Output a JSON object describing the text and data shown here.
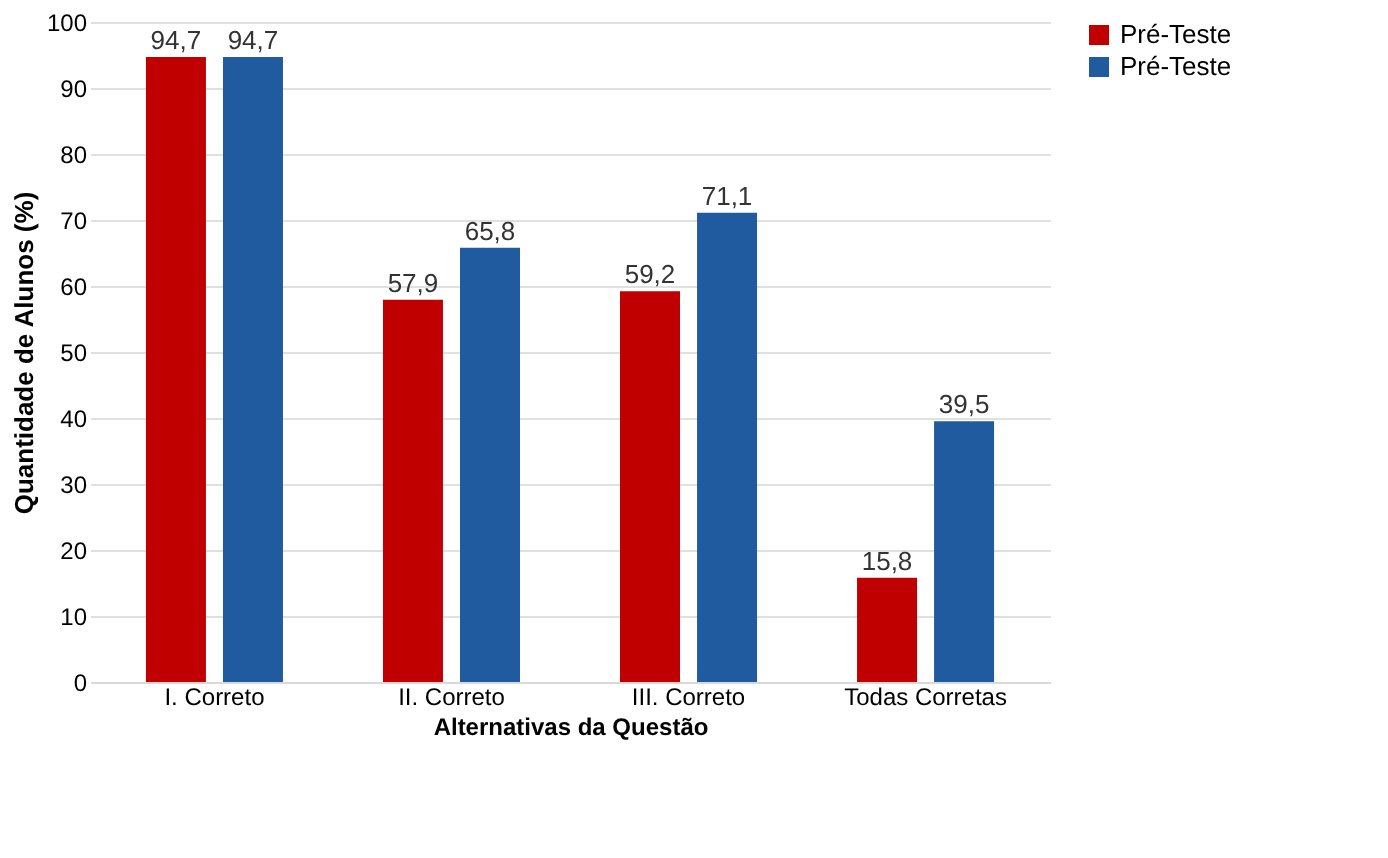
{
  "chart_data": {
    "type": "bar",
    "xlabel": "Alternativas da Questão",
    "ylabel": "Quantidade de Alunos (%)",
    "categories": [
      "I. Correto",
      "II. Correto",
      "III. Correto",
      "Todas Corretas"
    ],
    "series": [
      {
        "name": "Pré-Teste",
        "color": "#c00000",
        "values": [
          94.7,
          57.9,
          59.2,
          15.8
        ],
        "value_labels": [
          "94,7",
          "57,9",
          "59,2",
          "15,8"
        ]
      },
      {
        "name": "Pré-Teste",
        "color": "#1f5b9e",
        "values": [
          94.7,
          65.8,
          71.1,
          39.5
        ],
        "value_labels": [
          "94,7",
          "65,8",
          "71,1",
          "39,5"
        ]
      }
    ],
    "ylim": [
      0,
      100
    ],
    "yticks": [
      0,
      10,
      20,
      30,
      40,
      50,
      60,
      70,
      80,
      90,
      100
    ],
    "grid": "y",
    "legend": "right"
  }
}
